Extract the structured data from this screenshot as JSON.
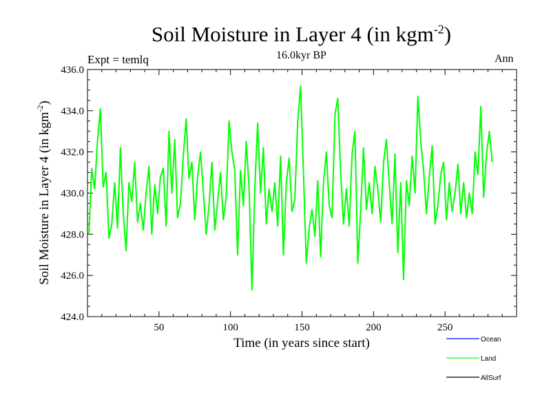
{
  "chart_data": {
    "type": "line",
    "title": "Soil Moisture in Layer 4 (in kgm",
    "title_sup": "-2",
    "title_close": ")",
    "subtitle": "16.0kyr BP",
    "expt_label": "Expt = temlq",
    "period_label": "Ann",
    "xlabel": "Time (in years since start)",
    "ylabel": "Soil Moisture in Layer 4 (in kgm",
    "ylabel_sup": "-2",
    "ylabel_close": ")",
    "xlim": [
      0,
      300
    ],
    "ylim": [
      424.0,
      436.0
    ],
    "x_ticks": [
      50,
      100,
      150,
      200,
      250
    ],
    "x_tick_labels": [
      "50",
      "100",
      "150",
      "200",
      "250"
    ],
    "y_ticks": [
      424,
      426,
      428,
      430,
      432,
      434,
      436
    ],
    "y_tick_labels": [
      "424.0",
      "426.0",
      "428.0",
      "430.0",
      "432.0",
      "434.0",
      "436.0"
    ],
    "legend": [
      {
        "name": "Ocean",
        "color": "#0000ff"
      },
      {
        "name": "Land",
        "color": "#00ff00"
      },
      {
        "name": "AllSurf",
        "color": "#000000"
      }
    ],
    "series": [
      {
        "name": "Land",
        "color": "#00ff00",
        "x_start": 1,
        "x_step": 2,
        "values": [
          428.0,
          431.2,
          430.2,
          432.5,
          434.1,
          430.3,
          431.0,
          427.8,
          428.5,
          430.5,
          428.3,
          432.2,
          429.0,
          427.2,
          430.5,
          429.6,
          431.5,
          428.6,
          429.5,
          428.2,
          430.0,
          431.3,
          428.0,
          430.4,
          429.0,
          430.8,
          431.2,
          428.4,
          433.0,
          430.0,
          432.6,
          428.8,
          429.5,
          431.8,
          433.6,
          430.7,
          431.5,
          428.7,
          430.8,
          432.0,
          430.1,
          428.0,
          429.4,
          431.5,
          428.2,
          429.6,
          431.0,
          428.7,
          429.8,
          433.5,
          432.0,
          431.1,
          427.0,
          431.1,
          429.4,
          432.5,
          430.2,
          425.3,
          430.3,
          433.4,
          430.0,
          432.2,
          428.5,
          430.2,
          429.1,
          430.5,
          428.4,
          431.8,
          427.0,
          430.5,
          431.7,
          429.1,
          429.7,
          433.5,
          435.2,
          431.0,
          426.6,
          428.3,
          429.2,
          427.9,
          430.6,
          426.9,
          430.5,
          432.0,
          429.4,
          428.8,
          433.8,
          434.6,
          431.0,
          428.5,
          430.2,
          428.4,
          431.9,
          433.0,
          426.6,
          429.1,
          432.2,
          429.2,
          430.5,
          429.0,
          431.3,
          430.2,
          428.6,
          431.5,
          432.6,
          430.4,
          428.5,
          431.9,
          427.1,
          430.5,
          425.8,
          430.6,
          429.4,
          431.8,
          430.0,
          434.7,
          432.5,
          431.1,
          429.0,
          430.8,
          432.3,
          428.5,
          429.4,
          430.9,
          431.5,
          428.7,
          430.5,
          429.1,
          430.0,
          431.4,
          429.0,
          430.5,
          428.8,
          430.0,
          429.0,
          432.0,
          430.9,
          434.2,
          429.8,
          431.9,
          433.0,
          431.5
        ]
      }
    ]
  }
}
